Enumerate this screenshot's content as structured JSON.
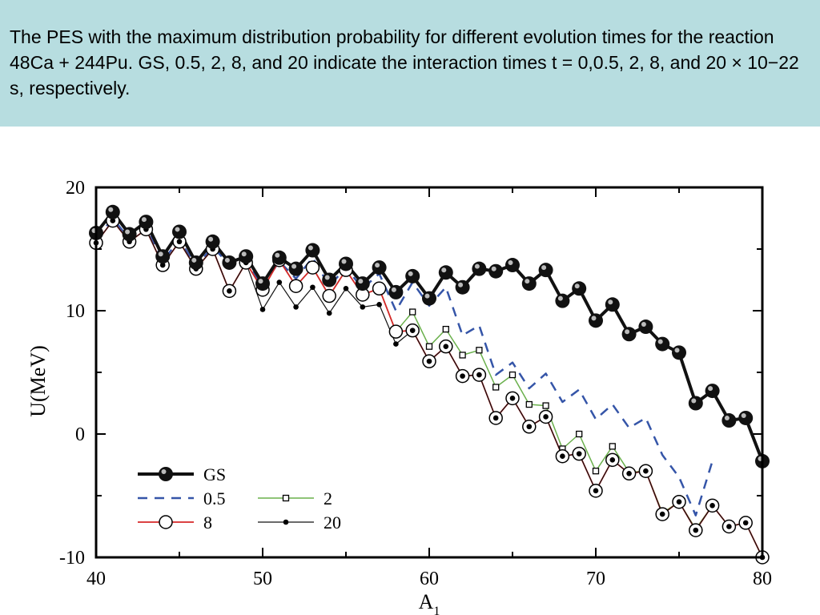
{
  "caption": {
    "text": "The PES with the maximum distribution probability for different evolution times for the reaction 48Ca + 244Pu. GS, 0.5, 2, 8, and 20 indicate the interaction times t = 0,0.5, 2, 8, and 20 × 10−22 s, respectively."
  },
  "chart_data": {
    "type": "line",
    "xlabel": "A",
    "xlabel_sub": "1",
    "ylabel": "U(MeV)",
    "xlim": [
      40,
      80
    ],
    "ylim": [
      -10,
      20
    ],
    "x_ticks": [
      40,
      50,
      60,
      70,
      80
    ],
    "y_ticks": [
      -10,
      0,
      10,
      20
    ],
    "legend_position": "bottom-left",
    "colors": {
      "GS": "#111111",
      "0.5": "#3555a8",
      "2": "#6ab04c",
      "8": "#d62728",
      "20": "#111111"
    },
    "series": [
      {
        "name": "GS",
        "x": [
          40,
          41,
          42,
          43,
          44,
          45,
          46,
          47,
          48,
          49,
          50,
          51,
          52,
          53,
          54,
          55,
          56,
          57,
          58,
          59,
          60,
          61,
          62,
          63,
          64,
          65,
          66,
          67,
          68,
          69,
          70,
          71,
          72,
          73,
          74,
          75,
          76,
          77,
          78,
          79,
          80
        ],
        "values": [
          16.3,
          18.0,
          16.2,
          17.2,
          14.4,
          16.4,
          13.9,
          15.6,
          13.9,
          14.4,
          12.2,
          14.3,
          13.4,
          14.9,
          12.5,
          13.8,
          12.2,
          13.5,
          11.5,
          12.8,
          11.0,
          13.1,
          11.9,
          13.4,
          13.2,
          13.7,
          12.2,
          13.3,
          10.8,
          11.8,
          9.2,
          10.5,
          8.1,
          8.7,
          7.3,
          6.6,
          2.5,
          3.5,
          1.1,
          1.3,
          -2.2
        ]
      },
      {
        "name": "0.5",
        "x": [
          40,
          41,
          42,
          43,
          44,
          45,
          46,
          47,
          48,
          49,
          50,
          51,
          52,
          53,
          54,
          55,
          56,
          57,
          58,
          59,
          60,
          61,
          62,
          63,
          64,
          65,
          66,
          67,
          68,
          69,
          70,
          71,
          72,
          73,
          74,
          75,
          76,
          77
        ],
        "values": [
          15.8,
          17.5,
          15.8,
          16.8,
          14.0,
          15.8,
          13.6,
          15.2,
          13.7,
          14.0,
          12.0,
          14.0,
          12.6,
          14.3,
          12.0,
          13.5,
          11.8,
          13.0,
          10.0,
          12.3,
          10.4,
          11.9,
          8.0,
          8.8,
          4.8,
          5.8,
          3.7,
          4.9,
          2.6,
          3.6,
          1.2,
          2.4,
          0.5,
          1.3,
          -1.7,
          -3.5,
          -6.6,
          -2.2
        ]
      },
      {
        "name": "2",
        "x": [
          40,
          41,
          42,
          43,
          44,
          45,
          46,
          47,
          48,
          49,
          50,
          51,
          52,
          53,
          54,
          55,
          56,
          57,
          58,
          59,
          60,
          61,
          62,
          63,
          64,
          65,
          66,
          67,
          68,
          69,
          70,
          71,
          72,
          73,
          74,
          75,
          76,
          77,
          78,
          79,
          80
        ],
        "values": [
          15.5,
          17.3,
          15.6,
          16.6,
          13.7,
          15.6,
          13.4,
          15.0,
          11.6,
          13.9,
          11.7,
          14.1,
          12.0,
          13.5,
          11.2,
          13.3,
          11.3,
          11.8,
          8.3,
          9.9,
          7.1,
          8.5,
          6.4,
          6.8,
          3.8,
          4.8,
          2.4,
          2.3,
          -1.2,
          0.0,
          -3.0,
          -1.0,
          -3.1,
          -3.0,
          -6.4,
          -5.5,
          -7.7,
          -5.8,
          -7.5,
          -7.2,
          -10.0
        ]
      },
      {
        "name": "8",
        "x": [
          40,
          41,
          42,
          43,
          44,
          45,
          46,
          47,
          48,
          49,
          50,
          51,
          52,
          53,
          54,
          55,
          56,
          57,
          58,
          59,
          60,
          61,
          62,
          63,
          64,
          65,
          66,
          67,
          68,
          69,
          70,
          71,
          72,
          73,
          74,
          75,
          76,
          77,
          78,
          79,
          80
        ],
        "values": [
          15.5,
          17.3,
          15.6,
          16.6,
          13.7,
          15.6,
          13.4,
          15.0,
          11.6,
          13.9,
          11.7,
          14.1,
          12.0,
          13.5,
          11.2,
          13.3,
          11.3,
          11.8,
          8.3,
          8.4,
          5.9,
          7.1,
          4.7,
          4.8,
          1.3,
          2.9,
          0.6,
          1.4,
          -1.8,
          -1.6,
          -4.6,
          -2.1,
          -3.2,
          -3.0,
          -6.5,
          -5.5,
          -7.8,
          -5.8,
          -7.5,
          -7.2,
          -10.0
        ]
      },
      {
        "name": "20",
        "x": [
          40,
          41,
          42,
          43,
          44,
          45,
          46,
          47,
          48,
          49,
          50,
          51,
          52,
          53,
          54,
          55,
          56,
          57,
          58,
          59,
          60,
          61,
          62,
          63,
          64,
          65,
          66,
          67,
          68,
          69,
          70,
          71,
          72,
          73,
          74,
          75,
          76,
          77,
          78,
          79,
          80
        ],
        "values": [
          15.5,
          17.3,
          15.6,
          16.6,
          13.7,
          15.6,
          13.4,
          15.0,
          11.6,
          13.9,
          10.1,
          12.3,
          10.3,
          11.9,
          9.8,
          11.8,
          10.3,
          10.5,
          7.3,
          8.4,
          5.9,
          7.1,
          4.7,
          4.8,
          1.3,
          2.9,
          0.6,
          1.4,
          -1.8,
          -1.6,
          -4.6,
          -2.1,
          -3.2,
          -3.0,
          -6.5,
          -5.5,
          -7.8,
          -5.8,
          -7.5,
          -7.2,
          -10.0
        ]
      }
    ]
  }
}
